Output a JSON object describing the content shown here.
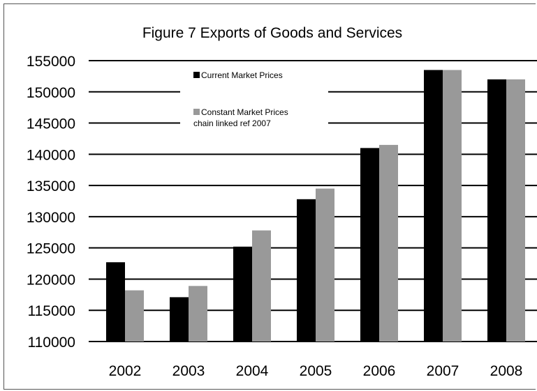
{
  "chart_data": {
    "type": "bar",
    "title": "Figure 7 Exports of Goods and Services",
    "xlabel": "",
    "ylabel": "",
    "categories": [
      "2002",
      "2003",
      "2004",
      "2005",
      "2006",
      "2007",
      "2008"
    ],
    "series": [
      {
        "name": "Current Market Prices",
        "color": "#000000",
        "values": [
          122700,
          117100,
          125200,
          132800,
          141000,
          153500,
          152000
        ]
      },
      {
        "name": "Constant Market Prices chain linked ref 2007",
        "name_lines": [
          "Constant Market Prices",
          "chain linked ref 2007"
        ],
        "color": "#999999",
        "values": [
          118200,
          118900,
          127800,
          134500,
          141500,
          153500,
          152000
        ]
      }
    ],
    "ylim": [
      110000,
      155000
    ],
    "yticks": [
      "110000",
      "115000",
      "120000",
      "125000",
      "130000",
      "135000",
      "140000",
      "145000",
      "150000",
      "155000"
    ],
    "grid": true,
    "legend": "top-center"
  }
}
